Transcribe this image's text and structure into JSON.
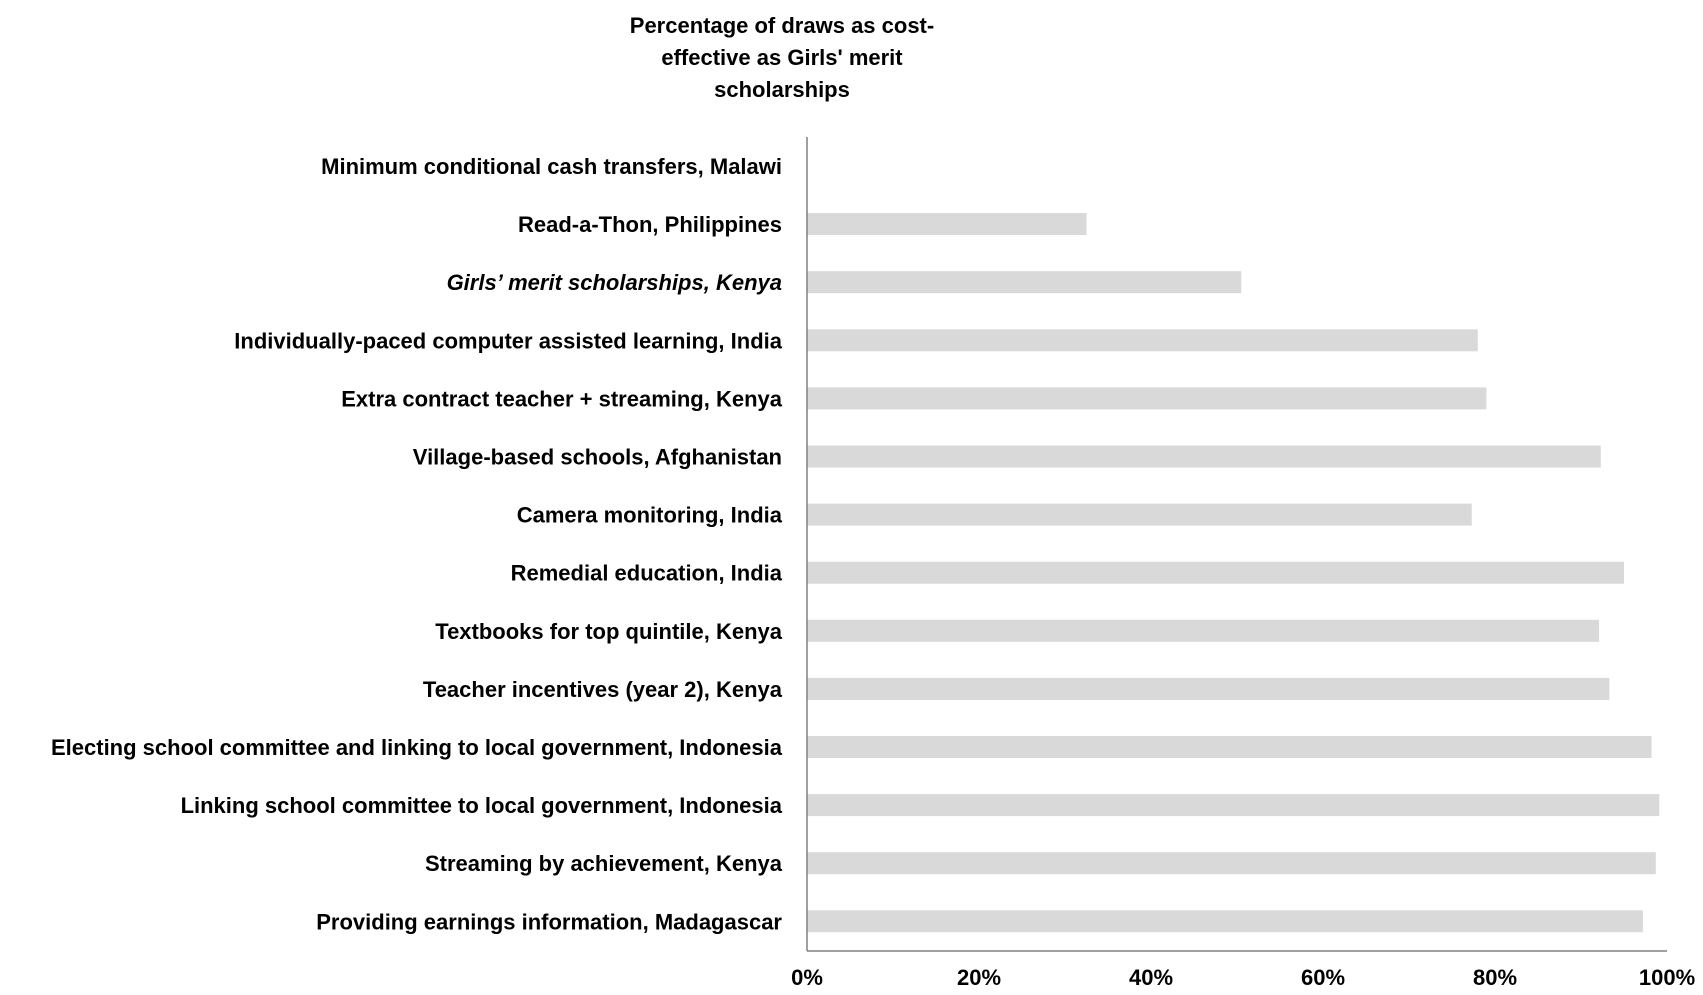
{
  "chart_data": {
    "type": "bar",
    "orientation": "horizontal",
    "title_lines": [
      "Percentage of draws as cost-",
      "effective as Girls' merit",
      "scholarships"
    ],
    "categories": [
      "Minimum conditional cash transfers, Malawi",
      "Read-a-Thon, Philippines",
      "Girls’ merit scholarships, Kenya",
      "Individually-paced computer assisted learning, India",
      "Extra contract teacher + streaming, Kenya",
      "Village-based schools, Afghanistan",
      "Camera monitoring, India",
      "Remedial education, India",
      "Textbooks for top quintile, Kenya",
      "Teacher incentives (year 2), Kenya",
      "Electing school committee and linking to local government, Indonesia",
      "Linking school committee to local government, Indonesia",
      "Streaming by achievement, Kenya",
      "Providing earnings information, Madagascar"
    ],
    "italic_categories": [
      "Girls’ merit scholarships, Kenya"
    ],
    "values": [
      0,
      32.5,
      50.5,
      78,
      79,
      92.3,
      77.3,
      95,
      92.1,
      93.3,
      98.2,
      99.1,
      98.7,
      97.2
    ],
    "xlim": [
      0,
      100
    ],
    "xticks": [
      0,
      20,
      40,
      60,
      80,
      100
    ],
    "xtick_labels": [
      "0%",
      "20%",
      "40%",
      "60%",
      "80%",
      "100%"
    ],
    "grid": false,
    "bar_color": "#d9d9d9",
    "axis_color": "#808080"
  }
}
